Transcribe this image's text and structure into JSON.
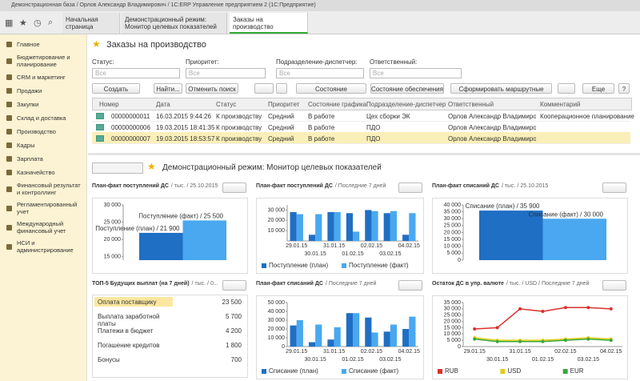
{
  "window_title": "Демонстрационная база / Орлов Александр Владимирович / 1С:ERP Управление предприятием 2 (1С:Предприятие)",
  "tabs": [
    "Начальная страница",
    "Демонстрационный режим: Монитор целевых показателей",
    "Заказы на производство"
  ],
  "menu": [
    "Главное",
    "Бюджетирование и планирование",
    "CRM и маркетинг",
    "Продажи",
    "Закупки",
    "Склад и доставка",
    "Производство",
    "Кадры",
    "Зарплата",
    "Казначейство",
    "Финансовый результат и контроллинг",
    "Регламентированный учет",
    "Международный финансовый учет",
    "НСИ и администрирование"
  ],
  "orders": {
    "title": "Заказы на производство",
    "filters": [
      {
        "label": "Статус:",
        "value": "Все"
      },
      {
        "label": "Приоритет:",
        "value": "Все"
      },
      {
        "label": "Подразделение-диспетчер:",
        "value": "Все"
      },
      {
        "label": "Ответственный:",
        "value": "Все"
      }
    ],
    "buttons": [
      "Создать",
      "Найти...",
      "Отменить поиск",
      "Состояние выполнения",
      "Состояние обеспечения",
      "Сформировать маршрутные листы",
      "Еще",
      "?"
    ],
    "table": {
      "columns": [
        "Номер",
        "Дата",
        "Статус",
        "Приоритет",
        "Состояние графика",
        "Подразделение-диспетчер",
        "Ответственный",
        "Комментарий"
      ],
      "rows": [
        [
          "00000000011",
          "16.03.2015 9:44:26",
          "К производству",
          "Средний",
          "В работе",
          "Цех сборки ЭК",
          "Орлов Александр Владимирович",
          "Кооперационное планирование"
        ],
        [
          "00000000006",
          "19.03.2015 18:41:35",
          "К производству",
          "Средний",
          "В работе",
          "ПДО",
          "Орлов Александр Владимирович"
        ],
        [
          "00000000007",
          "19.03.2015 18:53:57",
          "К производству",
          "Средний",
          "В работе",
          "ПДО",
          "Орлов Александр Владимирович"
        ]
      ]
    }
  },
  "monitor": {
    "title": "Демонстрационный режим: Монитор целевых показателей",
    "top5": {
      "title": "ТОП-5 Будущих выплат (на 7 дней)",
      "subtitle": "/ тыс. / 0...",
      "rows": [
        [
          "Оплата поставщику",
          "23 500"
        ],
        [
          "Выплата заработной платы",
          "5 700"
        ],
        [
          "Платежи в бюджет",
          "4 200"
        ],
        [
          "Погашение кредитов",
          "1 800"
        ],
        [
          "Бонусы",
          "700"
        ]
      ]
    }
  },
  "chart_data": [
    {
      "type": "bar",
      "title": "План-факт поступлений ДС",
      "subtitle": "/ тыс. / 25.10.2015",
      "ylim": [
        14000,
        30000
      ],
      "yticks": [
        {
          "value": 15000,
          "label": "15 000"
        },
        {
          "value": 20000,
          "label": "20 000"
        },
        {
          "value": 25000,
          "label": "25 000"
        },
        {
          "value": 30000,
          "label": "30 000"
        }
      ],
      "series": [
        {
          "color": "#1f6fc4",
          "values": [
            21900
          ],
          "value_labels": [
            "Поступление (план) / 21 900"
          ]
        },
        {
          "color": "#49a8f0",
          "values": [
            25500
          ],
          "value_labels": [
            "Поступление (факт) / 25 500"
          ]
        }
      ]
    },
    {
      "type": "grouped-bar",
      "title": "План-факт поступлений ДС",
      "subtitle": "/ Последние 7 дней",
      "ylim": [
        0,
        35000
      ],
      "yticks": [
        {
          "value": 10000,
          "label": "10 000"
        },
        {
          "value": 20000,
          "label": "20 000"
        },
        {
          "value": 30000,
          "label": "30 000"
        }
      ],
      "categories": [
        "29.01.15",
        "30.01.15",
        "31.01.15",
        "01.02.15",
        "02.02.15",
        "03.02.15",
        "04.02.15"
      ],
      "series": [
        {
          "name": "Поступление (план)",
          "color": "#1f6fc4",
          "values": [
            28000,
            6000,
            28000,
            27000,
            30000,
            27000,
            6000
          ]
        },
        {
          "name": "Поступление (факт)",
          "color": "#49a8f0",
          "values": [
            26000,
            26000,
            28000,
            9000,
            29000,
            29000,
            27000
          ]
        }
      ]
    },
    {
      "type": "bar",
      "title": "План-факт списаний ДС",
      "subtitle": "/ тыс. / 25.10.2015",
      "ylim": [
        0,
        40000
      ],
      "yticks": [
        0,
        {
          "value": 5000,
          "label": "5 000"
        },
        {
          "value": 10000,
          "label": "10 000"
        },
        {
          "value": 15000,
          "label": "15 000"
        },
        {
          "value": 20000,
          "label": "20 000"
        },
        {
          "value": 25000,
          "label": "25 000"
        },
        {
          "value": 30000,
          "label": "30 000"
        },
        {
          "value": 35000,
          "label": "35 000"
        },
        {
          "value": 40000,
          "label": "40 000"
        }
      ],
      "series": [
        {
          "color": "#1f6fc4",
          "values": [
            35900
          ],
          "value_labels": [
            "Списание (план) / 35 900"
          ]
        },
        {
          "color": "#49a8f0",
          "values": [
            30000
          ],
          "value_labels": [
            "Списание (факт) / 30 000"
          ]
        }
      ]
    },
    {
      "type": "grouped-bar",
      "title": "План-факт списаний ДС",
      "subtitle": "/ Последние 7 дней",
      "ylim": [
        0,
        50000
      ],
      "yticks": [
        0,
        {
          "value": 10000,
          "label": "10 000"
        },
        {
          "value": 20000,
          "label": "20 000"
        },
        {
          "value": 30000,
          "label": "30 000"
        },
        {
          "value": 40000,
          "label": "40 000"
        },
        {
          "value": 50000,
          "label": "50 000"
        }
      ],
      "categories": [
        "29.01.15",
        "30.01.15",
        "31.01.15",
        "01.02.15",
        "02.02.15",
        "03.02.15",
        "04.02.15"
      ],
      "series": [
        {
          "name": "Списание (план)",
          "color": "#1f6fc4",
          "values": [
            24000,
            5000,
            8000,
            38000,
            33000,
            17000,
            20000
          ],
          "name_short": null
        },
        {
          "name": "Списание (факт)",
          "color": "#49a8f0",
          "values": [
            30000,
            25000,
            22000,
            38000,
            16000,
            25000,
            34000
          ]
        }
      ]
    },
    {
      "type": "line",
      "title": "Остаток ДС в упр. валюте",
      "subtitle": "/ тыс. / USD / Последние 7 дней",
      "ylim": [
        0,
        35000
      ],
      "yticks": [
        0,
        {
          "value": 5000,
          "label": "5 000"
        },
        {
          "value": 10000,
          "label": "10 000"
        },
        {
          "value": 15000,
          "label": "15 000"
        },
        {
          "value": 20000,
          "label": "20 000"
        },
        {
          "value": 25000,
          "label": "25 000"
        },
        {
          "value": 30000,
          "label": "30 000"
        },
        {
          "value": 35000,
          "label": "35 000"
        }
      ],
      "categories": [
        "29.01.15",
        "30.01.15",
        "31.01.15",
        "01.02.15",
        "02.02.15",
        "03.02.15",
        "04.02.15"
      ],
      "series": [
        {
          "name": "RUB",
          "color": "#d9302c",
          "values": [
            14000,
            15000,
            30000,
            28000,
            31000,
            31000,
            30000
          ]
        },
        {
          "name": "USD",
          "color": "#e3cc16",
          "values": [
            7000,
            5000,
            5000,
            5000,
            6000,
            7000,
            6000
          ]
        },
        {
          "name": "EUR",
          "color": "#3aa83a",
          "values": [
            6000,
            4000,
            4000,
            4000,
            5000,
            6000,
            5000
          ]
        }
      ]
    }
  ]
}
